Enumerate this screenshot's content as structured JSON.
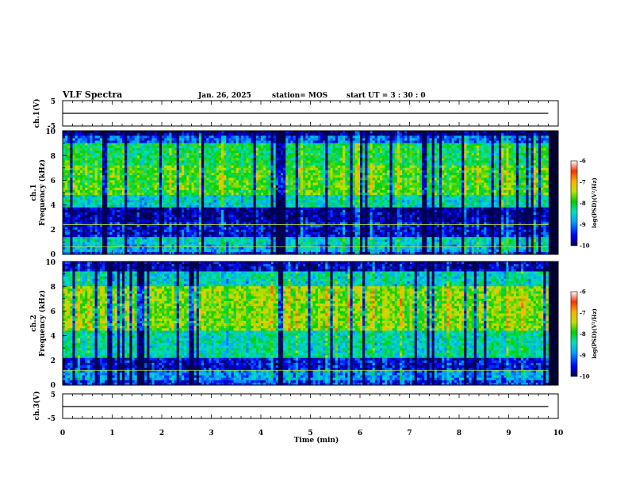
{
  "header": {
    "title": "VLF Spectra",
    "date": "Jan. 26, 2025",
    "station": "station= MOS",
    "start": "start  UT =  3 : 30 : 0"
  },
  "colors": {
    "background": "#ffffff",
    "axes": "#000000",
    "colormap": [
      "#000050",
      "#0000ff",
      "#00a0ff",
      "#00e0c0",
      "#00d000",
      "#c0e000",
      "#ffb000",
      "#ff3000",
      "#ffffff"
    ]
  },
  "chart_data": [
    {
      "type": "line",
      "panel": "ch1-waveform",
      "ylabel": "ch.1(V)",
      "ylim": [
        -5,
        5
      ],
      "yticks": [
        "5",
        "-5"
      ],
      "series": [
        {
          "x": [
            0,
            9.8
          ],
          "y": [
            0,
            0
          ]
        }
      ]
    },
    {
      "type": "heatmap",
      "panel": "ch1-spectrogram",
      "ylabel_channel": "ch.1",
      "ylabel": "Frequency (kHz)",
      "ylim": [
        0,
        10
      ],
      "yticks": [
        "0",
        "2",
        "4",
        "6",
        "8",
        "10"
      ],
      "xlim": [
        0,
        10
      ],
      "data_end_min": 9.8,
      "bands": [
        {
          "f": [
            0.0,
            0.3
          ],
          "level": -9.3
        },
        {
          "f": [
            0.3,
            0.7
          ],
          "level": -8.8
        },
        {
          "f": [
            0.7,
            1.5
          ],
          "level": -8.6
        },
        {
          "f": [
            1.5,
            2.2
          ],
          "level": -9.6
        },
        {
          "f": [
            2.2,
            2.6
          ],
          "level": -9.5
        },
        {
          "f": [
            2.6,
            3.9
          ],
          "level": -9.8
        },
        {
          "f": [
            3.9,
            4.8
          ],
          "level": -8.6
        },
        {
          "f": [
            4.8,
            7.2
          ],
          "level": -7.9
        },
        {
          "f": [
            7.2,
            9.0
          ],
          "level": -8.2
        },
        {
          "f": [
            9.0,
            9.6
          ],
          "level": -9.2
        },
        {
          "f": [
            9.6,
            10.0
          ],
          "level": -9.9
        }
      ],
      "line_features_khz": [
        0.6,
        2.4
      ],
      "colorbar": {
        "label": "log(PSD)(V²/Hz)",
        "range": [
          -10,
          -6
        ],
        "ticks": [
          "-6",
          "-7",
          "-8",
          "-9",
          "-10"
        ]
      }
    },
    {
      "type": "heatmap",
      "panel": "ch2-spectrogram",
      "ylabel_channel": "ch.2",
      "ylabel": "Frequency (kHz)",
      "ylim": [
        0,
        10
      ],
      "yticks": [
        "0",
        "2",
        "4",
        "6",
        "8",
        "10"
      ],
      "xlim": [
        0,
        10
      ],
      "data_end_min": 9.8,
      "bands": [
        {
          "f": [
            0.0,
            0.4
          ],
          "level": -9.4
        },
        {
          "f": [
            0.4,
            1.3
          ],
          "level": -9.0
        },
        {
          "f": [
            1.3,
            2.1
          ],
          "level": -9.6
        },
        {
          "f": [
            2.1,
            4.5
          ],
          "level": -8.5
        },
        {
          "f": [
            4.5,
            8.0
          ],
          "level": -7.7
        },
        {
          "f": [
            8.0,
            9.2
          ],
          "level": -8.6
        },
        {
          "f": [
            9.2,
            10.0
          ],
          "level": -9.7
        }
      ],
      "line_features_khz": [
        1.2
      ],
      "colorbar": {
        "label": "log(PSD)(V²/Hz)",
        "range": [
          -10,
          -6
        ],
        "ticks": [
          "-6",
          "-7",
          "-8",
          "-9",
          "-10"
        ]
      }
    },
    {
      "type": "line",
      "panel": "ch3-waveform",
      "ylabel": "ch.3(V)",
      "ylim": [
        -5,
        5
      ],
      "yticks": [
        "5",
        "-5"
      ],
      "series": [
        {
          "x": [
            0,
            9.8
          ],
          "y": [
            0,
            0
          ]
        }
      ]
    }
  ],
  "xaxis": {
    "label": "Time (min)",
    "ticks": [
      "0",
      "1",
      "2",
      "3",
      "4",
      "5",
      "6",
      "7",
      "8",
      "9",
      "10"
    ]
  }
}
